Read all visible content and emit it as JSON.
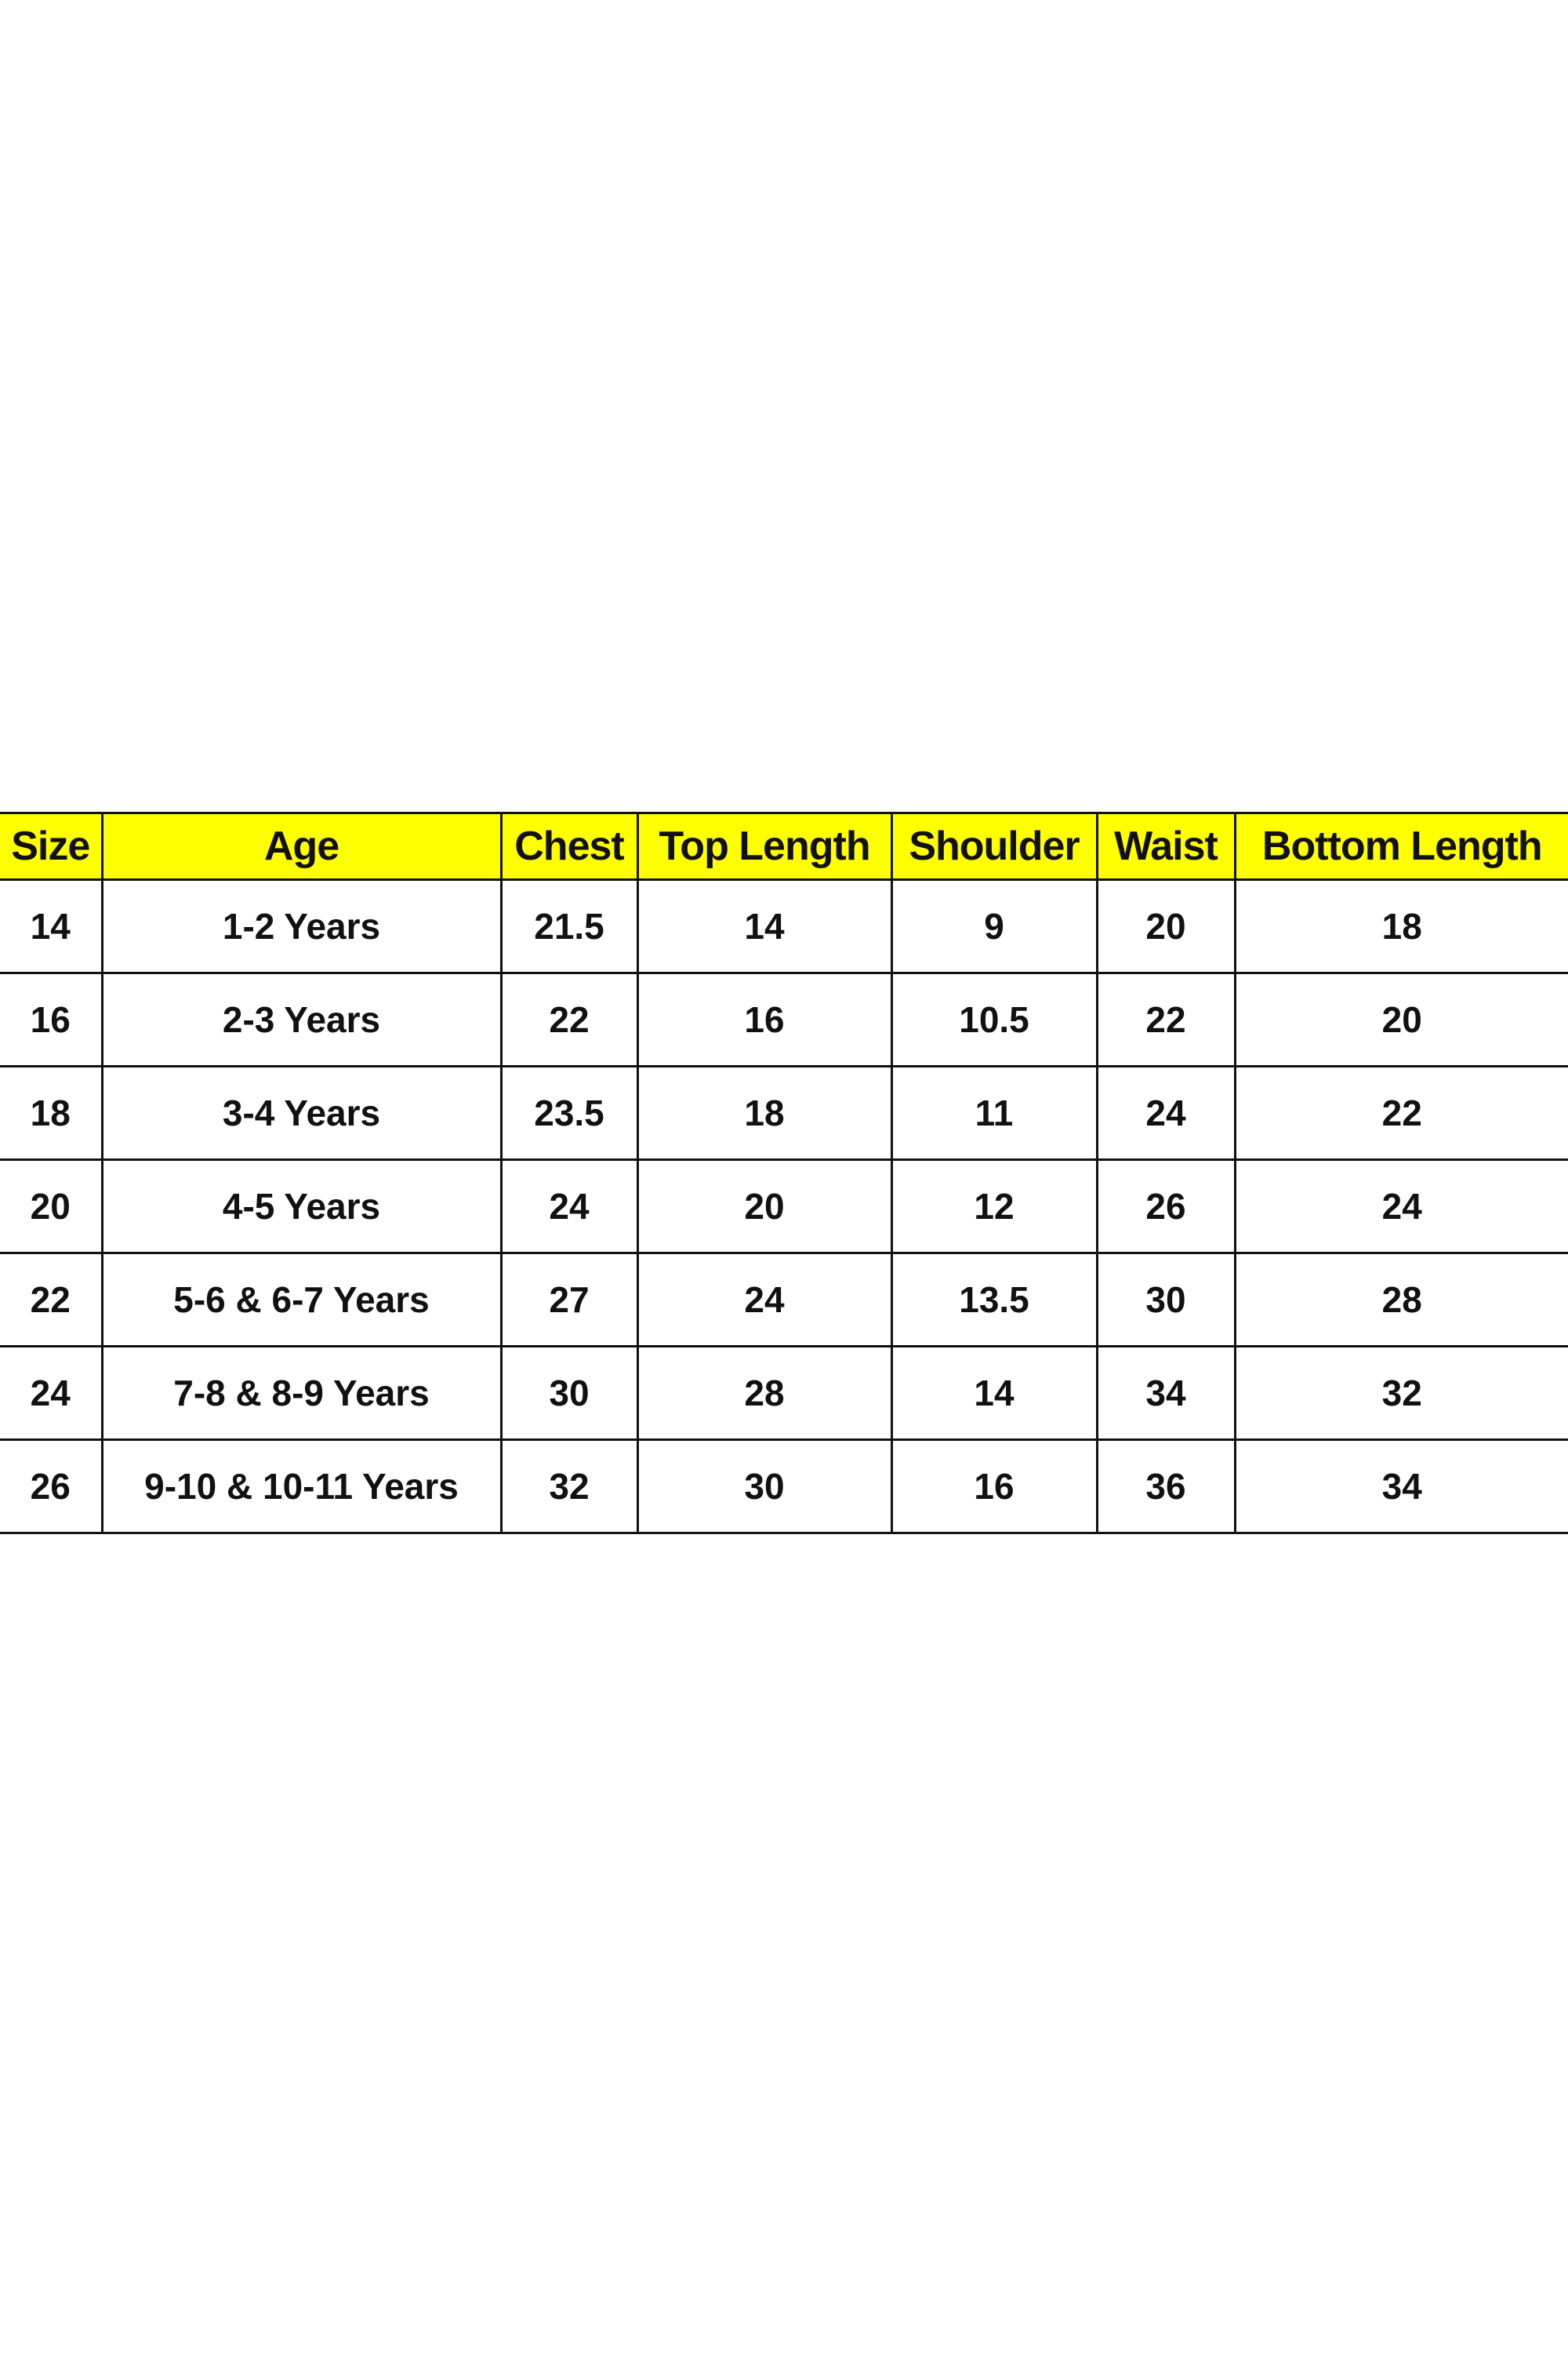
{
  "size_chart": {
    "header_color": "#ffff00",
    "columns": [
      "Size",
      "Age",
      "Chest",
      "Top Length",
      "Shoulder",
      "Waist",
      "Bottom Length"
    ],
    "rows": [
      [
        "14",
        "1-2 Years",
        "21.5",
        "14",
        "9",
        "20",
        "18"
      ],
      [
        "16",
        "2-3 Years",
        "22",
        "16",
        "10.5",
        "22",
        "20"
      ],
      [
        "18",
        "3-4 Years",
        "23.5",
        "18",
        "11",
        "24",
        "22"
      ],
      [
        "20",
        "4-5 Years",
        "24",
        "20",
        "12",
        "26",
        "24"
      ],
      [
        "22",
        "5-6 & 6-7 Years",
        "27",
        "24",
        "13.5",
        "30",
        "28"
      ],
      [
        "24",
        "7-8 & 8-9 Years",
        "30",
        "28",
        "14",
        "34",
        "32"
      ],
      [
        "26",
        "9-10 & 10-11 Years",
        "32",
        "30",
        "16",
        "36",
        "34"
      ]
    ]
  }
}
